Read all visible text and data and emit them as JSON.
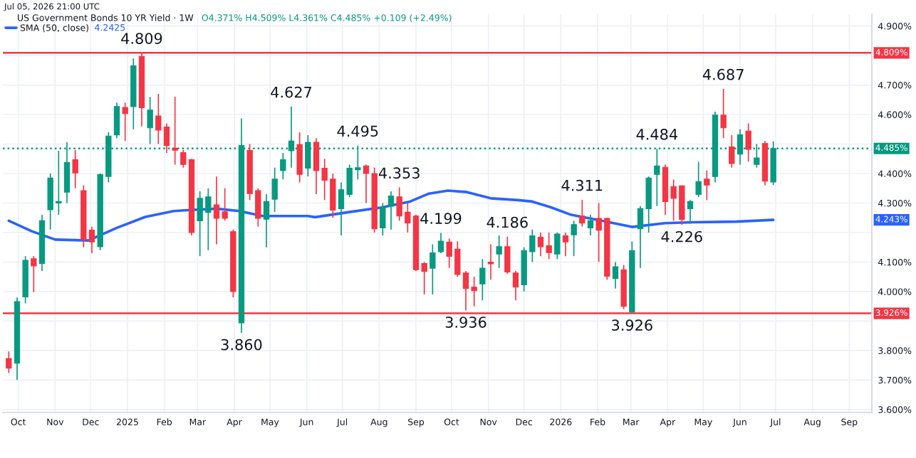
{
  "chart_data": {
    "type": "candlestick",
    "title": "US Government Bonds 10 YR Yield · 1W",
    "x": [
      "2024-09-23",
      "2024-09-30",
      "2024-10-07",
      "2024-10-14",
      "2024-10-21",
      "2024-10-28",
      "2024-11-04",
      "2024-11-11",
      "2024-11-18",
      "2024-11-25",
      "2024-12-02",
      "2024-12-09",
      "2024-12-16",
      "2024-12-23",
      "2024-12-30",
      "2025-01-06",
      "2025-01-13",
      "2025-01-20",
      "2025-01-27",
      "2025-02-03",
      "2025-02-10",
      "2025-02-17",
      "2025-02-24",
      "2025-03-03",
      "2025-03-10",
      "2025-03-17",
      "2025-03-24",
      "2025-03-31",
      "2025-04-07",
      "2025-04-14",
      "2025-04-21",
      "2025-04-28",
      "2025-05-05",
      "2025-05-12",
      "2025-05-19",
      "2025-05-26",
      "2025-06-02",
      "2025-06-09",
      "2025-06-16",
      "2025-06-23",
      "2025-06-30",
      "2025-07-07",
      "2025-07-14",
      "2025-07-21",
      "2025-07-28",
      "2025-08-04",
      "2025-08-11",
      "2025-08-18",
      "2025-08-25",
      "2025-09-01",
      "2025-09-08",
      "2025-09-15",
      "2025-09-22",
      "2025-09-29",
      "2025-10-06",
      "2025-10-13",
      "2025-10-20",
      "2025-10-27",
      "2025-11-03",
      "2025-11-10",
      "2025-11-17",
      "2025-11-24",
      "2025-12-01",
      "2025-12-08",
      "2025-12-15",
      "2025-12-22",
      "2025-12-29",
      "2026-01-05",
      "2026-01-12",
      "2026-01-19",
      "2026-01-26",
      "2026-02-02",
      "2026-02-09",
      "2026-02-16",
      "2026-02-23",
      "2026-03-02",
      "2026-03-09",
      "2026-03-16",
      "2026-03-23",
      "2026-03-30",
      "2026-04-06",
      "2026-04-13",
      "2026-04-20",
      "2026-04-27",
      "2026-05-04",
      "2026-05-11",
      "2026-05-18",
      "2026-05-25",
      "2026-06-01",
      "2026-06-08",
      "2026-06-15",
      "2026-06-22",
      "2026-06-29"
    ],
    "ohlc": [
      [
        3.773,
        3.797,
        3.724,
        3.74
      ],
      [
        3.757,
        3.98,
        3.7,
        3.966
      ],
      [
        3.982,
        4.12,
        3.96,
        4.106
      ],
      [
        4.111,
        4.12,
        3.998,
        4.087
      ],
      [
        4.095,
        4.26,
        4.07,
        4.24
      ],
      [
        4.277,
        4.4,
        4.21,
        4.385
      ],
      [
        4.3,
        4.477,
        4.26,
        4.305
      ],
      [
        4.337,
        4.506,
        4.3,
        4.437
      ],
      [
        4.447,
        4.48,
        4.35,
        4.402
      ],
      [
        4.342,
        4.36,
        4.15,
        4.176
      ],
      [
        4.208,
        4.22,
        4.13,
        4.168
      ],
      [
        4.152,
        4.4,
        4.14,
        4.397
      ],
      [
        4.39,
        4.54,
        4.37,
        4.527
      ],
      [
        4.531,
        4.64,
        4.52,
        4.627
      ],
      [
        4.624,
        4.64,
        4.51,
        4.603
      ],
      [
        4.627,
        4.79,
        4.55,
        4.765
      ],
      [
        4.797,
        4.809,
        4.56,
        4.623
      ],
      [
        4.555,
        4.66,
        4.5,
        4.615
      ],
      [
        4.595,
        4.67,
        4.5,
        4.547
      ],
      [
        4.558,
        4.57,
        4.47,
        4.495
      ],
      [
        4.486,
        4.66,
        4.43,
        4.479
      ],
      [
        4.471,
        4.48,
        4.42,
        4.431
      ],
      [
        4.447,
        4.45,
        4.19,
        4.2
      ],
      [
        4.24,
        4.34,
        4.12,
        4.316
      ],
      [
        4.268,
        4.35,
        4.14,
        4.321
      ],
      [
        4.294,
        4.39,
        4.16,
        4.248
      ],
      [
        4.27,
        4.35,
        4.24,
        4.248
      ],
      [
        4.203,
        4.21,
        3.98,
        4.0
      ],
      [
        3.894,
        4.587,
        3.86,
        4.495
      ],
      [
        4.479,
        4.5,
        4.31,
        4.332
      ],
      [
        4.342,
        4.35,
        4.22,
        4.248
      ],
      [
        4.245,
        4.33,
        4.15,
        4.305
      ],
      [
        4.313,
        4.42,
        4.27,
        4.381
      ],
      [
        4.41,
        4.47,
        4.38,
        4.447
      ],
      [
        4.477,
        4.627,
        4.42,
        4.51
      ],
      [
        4.498,
        4.54,
        4.37,
        4.397
      ],
      [
        4.418,
        4.53,
        4.39,
        4.506
      ],
      [
        4.506,
        4.52,
        4.33,
        4.41
      ],
      [
        4.418,
        4.45,
        4.31,
        4.377
      ],
      [
        4.381,
        4.4,
        4.25,
        4.276
      ],
      [
        4.281,
        4.37,
        4.19,
        4.345
      ],
      [
        4.329,
        4.43,
        4.32,
        4.418
      ],
      [
        4.413,
        4.495,
        4.38,
        4.42
      ],
      [
        4.426,
        4.43,
        4.3,
        4.4
      ],
      [
        4.4,
        4.42,
        4.2,
        4.213
      ],
      [
        4.216,
        4.3,
        4.19,
        4.285
      ],
      [
        4.289,
        4.34,
        4.21,
        4.324
      ],
      [
        4.321,
        4.353,
        4.24,
        4.256
      ],
      [
        4.269,
        4.3,
        4.2,
        4.232
      ],
      [
        4.256,
        4.26,
        4.07,
        4.074
      ],
      [
        4.095,
        4.1,
        3.99,
        4.068
      ],
      [
        4.079,
        4.16,
        3.99,
        4.131
      ],
      [
        4.135,
        4.199,
        4.13,
        4.171
      ],
      [
        4.168,
        4.18,
        4.08,
        4.119
      ],
      [
        4.144,
        4.17,
        4.05,
        4.058
      ],
      [
        4.063,
        4.07,
        3.936,
        4.01
      ],
      [
        4.015,
        4.05,
        3.95,
        4.003
      ],
      [
        4.026,
        4.11,
        3.97,
        4.079
      ],
      [
        4.1,
        4.16,
        4.04,
        4.094
      ],
      [
        4.127,
        4.19,
        4.08,
        4.152
      ],
      [
        4.152,
        4.186,
        4.06,
        4.066
      ],
      [
        4.063,
        4.07,
        3.97,
        4.015
      ],
      [
        4.023,
        4.15,
        4.0,
        4.139
      ],
      [
        4.135,
        4.21,
        4.1,
        4.189
      ],
      [
        4.184,
        4.2,
        4.12,
        4.152
      ],
      [
        4.155,
        4.2,
        4.11,
        4.132
      ],
      [
        4.127,
        4.2,
        4.11,
        4.195
      ],
      [
        4.189,
        4.2,
        4.12,
        4.168
      ],
      [
        4.192,
        4.24,
        4.12,
        4.227
      ],
      [
        4.256,
        4.311,
        4.22,
        4.232
      ],
      [
        4.216,
        4.26,
        4.19,
        4.24
      ],
      [
        4.248,
        4.3,
        4.1,
        4.208
      ],
      [
        4.248,
        4.25,
        4.04,
        4.052
      ],
      [
        4.044,
        4.1,
        4.01,
        4.084
      ],
      [
        4.074,
        4.09,
        3.94,
        3.95
      ],
      [
        3.931,
        4.17,
        3.926,
        4.139
      ],
      [
        4.213,
        4.29,
        4.08,
        4.281
      ],
      [
        4.281,
        4.39,
        4.2,
        4.385
      ],
      [
        4.397,
        4.484,
        4.29,
        4.426
      ],
      [
        4.421,
        4.43,
        4.26,
        4.305
      ],
      [
        4.356,
        4.38,
        4.24,
        4.316
      ],
      [
        4.358,
        4.36,
        4.226,
        4.244
      ],
      [
        4.281,
        4.31,
        4.23,
        4.305
      ],
      [
        4.329,
        4.44,
        4.32,
        4.373
      ],
      [
        4.381,
        4.41,
        4.31,
        4.361
      ],
      [
        4.39,
        4.61,
        4.37,
        4.598
      ],
      [
        4.598,
        4.687,
        4.52,
        4.555
      ],
      [
        4.49,
        4.53,
        4.42,
        4.434
      ],
      [
        4.466,
        4.55,
        4.43,
        4.531
      ],
      [
        4.544,
        4.57,
        4.44,
        4.482
      ],
      [
        4.431,
        4.5,
        4.42,
        4.453
      ],
      [
        4.502,
        4.51,
        4.36,
        4.374
      ],
      [
        4.371,
        4.509,
        4.361,
        4.485
      ]
    ],
    "colors": [
      "#f23645",
      "#089981",
      "#089981",
      "#f23645",
      "#089981",
      "#089981",
      "#089981",
      "#089981",
      "#f23645",
      "#f23645",
      "#f23645",
      "#089981",
      "#089981",
      "#089981",
      "#f23645",
      "#089981",
      "#f23645",
      "#089981",
      "#f23645",
      "#f23645",
      "#f23645",
      "#f23645",
      "#f23645",
      "#089981",
      "#089981",
      "#f23645",
      "#f23645",
      "#f23645",
      "#089981",
      "#f23645",
      "#f23645",
      "#089981",
      "#089981",
      "#089981",
      "#089981",
      "#f23645",
      "#089981",
      "#f23645",
      "#f23645",
      "#f23645",
      "#089981",
      "#089981",
      "#089981",
      "#f23645",
      "#f23645",
      "#089981",
      "#089981",
      "#f23645",
      "#f23645",
      "#f23645",
      "#f23645",
      "#089981",
      "#089981",
      "#f23645",
      "#f23645",
      "#f23645",
      "#f23645",
      "#089981",
      "#f23645",
      "#089981",
      "#f23645",
      "#f23645",
      "#089981",
      "#089981",
      "#f23645",
      "#f23645",
      "#089981",
      "#f23645",
      "#089981",
      "#f23645",
      "#089981",
      "#f23645",
      "#f23645",
      "#089981",
      "#f23645",
      "#089981",
      "#089981",
      "#089981",
      "#089981",
      "#f23645",
      "#f23645",
      "#f23645",
      "#089981",
      "#089981",
      "#f23645",
      "#089981",
      "#f23645",
      "#f23645",
      "#089981",
      "#f23645",
      "#089981",
      "#f23645",
      "#089981"
    ],
    "series": [
      {
        "type": "line",
        "name": "SMA (50, close)",
        "color": "#2962ff",
        "x": [
          "2024-09-23",
          "2024-10-12",
          "2024-11-01",
          "2024-11-29",
          "2024-12-23",
          "2025-01-16",
          "2025-02-09",
          "2025-02-21",
          "2025-03-17",
          "2025-04-05",
          "2025-04-25",
          "2025-05-15",
          "2025-06-02",
          "2025-06-08",
          "2025-07-06",
          "2025-08-03",
          "2025-08-27",
          "2025-09-12",
          "2025-09-28",
          "2025-10-14",
          "2025-11-03",
          "2025-11-26",
          "2025-12-08",
          "2025-12-24",
          "2026-01-09",
          "2026-01-29",
          "2026-03-02",
          "2026-03-30",
          "2026-04-23",
          "2026-05-29",
          "2026-06-29"
        ],
        "values": [
          4.24,
          4.205,
          4.176,
          4.173,
          4.216,
          4.253,
          4.273,
          4.276,
          4.281,
          4.273,
          4.256,
          4.256,
          4.256,
          4.252,
          4.269,
          4.285,
          4.305,
          4.332,
          4.342,
          4.337,
          4.316,
          4.31,
          4.305,
          4.285,
          4.261,
          4.245,
          4.219,
          4.232,
          4.235,
          4.237,
          4.243
        ]
      }
    ],
    "xlim": [
      "2024-09-18",
      "2026-09-20"
    ],
    "xticks": [
      {
        "value": "2024-10-01",
        "label": "Oct"
      },
      {
        "value": "2024-11-01",
        "label": "Nov"
      },
      {
        "value": "2024-12-01",
        "label": "Dec"
      },
      {
        "value": "2025-01-01",
        "label": "2025"
      },
      {
        "value": "2025-02-01",
        "label": "Feb"
      },
      {
        "value": "2025-03-01",
        "label": "Mar"
      },
      {
        "value": "2025-04-01",
        "label": "Apr"
      },
      {
        "value": "2025-05-01",
        "label": "May"
      },
      {
        "value": "2025-06-01",
        "label": "Jun"
      },
      {
        "value": "2025-07-01",
        "label": "Jul"
      },
      {
        "value": "2025-08-01",
        "label": "Aug"
      },
      {
        "value": "2025-09-01",
        "label": "Sep"
      },
      {
        "value": "2025-10-01",
        "label": "Oct"
      },
      {
        "value": "2025-11-01",
        "label": "Nov"
      },
      {
        "value": "2025-12-01",
        "label": "Dec"
      },
      {
        "value": "2026-01-01",
        "label": "2026"
      },
      {
        "value": "2026-02-01",
        "label": "Feb"
      },
      {
        "value": "2026-03-01",
        "label": "Mar"
      },
      {
        "value": "2026-04-01",
        "label": "Apr"
      },
      {
        "value": "2026-05-01",
        "label": "May"
      },
      {
        "value": "2026-06-01",
        "label": "Jun"
      },
      {
        "value": "2026-07-01",
        "label": "Jul"
      },
      {
        "value": "2026-08-01",
        "label": "Aug"
      },
      {
        "value": "2026-09-01",
        "label": "Sep"
      }
    ],
    "ylim": [
      3.59,
      4.94
    ],
    "yticks": [
      {
        "value": 3.6,
        "label": "3.600%"
      },
      {
        "value": 3.7,
        "label": "3.700%"
      },
      {
        "value": 3.8,
        "label": "3.800%"
      },
      {
        "value": 3.9,
        "label": null
      },
      {
        "value": 4.0,
        "label": "4.000%"
      },
      {
        "value": 4.1,
        "label": "4.100%"
      },
      {
        "value": 4.2,
        "label": null
      },
      {
        "value": 4.3,
        "label": "4.300%"
      },
      {
        "value": 4.4,
        "label": "4.400%"
      },
      {
        "value": 4.5,
        "label": null
      },
      {
        "value": 4.6,
        "label": "4.600%"
      },
      {
        "value": 4.7,
        "label": "4.700%"
      },
      {
        "value": 4.8,
        "label": null
      },
      {
        "value": 4.9,
        "label": "4.900%"
      }
    ],
    "ref_lines": [
      {
        "axis": "y",
        "value": 4.809,
        "label": "4.809%",
        "color": "#f23645"
      },
      {
        "axis": "y",
        "value": 3.926,
        "label": "3.926%",
        "color": "#f23645"
      },
      {
        "axis": "y",
        "value": 4.485,
        "label": "4.485%",
        "color": "#089981",
        "line_style": "dotted"
      }
    ],
    "annotations": [
      "Jul 05, 2026 21:00 UTC",
      "O4.371% H4.509% L4.361% C4.485% +0.109 (+2.49%)",
      "4.2425",
      {
        "text": "4.243%",
        "y": 4.243
      },
      {
        "text": "4.809",
        "x": "2025-01-13",
        "y": 4.809
      },
      {
        "text": "3.860",
        "x": "2025-04-07",
        "y": 3.86
      },
      {
        "text": "4.627",
        "x": "2025-05-19",
        "y": 4.627
      },
      {
        "text": "4.495",
        "x": "2025-07-14",
        "y": 4.495
      },
      {
        "text": "4.353",
        "x": "2025-08-18",
        "y": 4.353
      },
      {
        "text": "4.199",
        "x": "2025-09-22",
        "y": 4.199
      },
      {
        "text": "3.936",
        "x": "2025-10-13",
        "y": 3.936
      },
      {
        "text": "4.186",
        "x": "2025-11-17",
        "y": 4.186
      },
      {
        "text": "4.311",
        "x": "2026-01-19",
        "y": 4.311
      },
      {
        "text": "3.926",
        "x": "2026-03-02",
        "y": 3.926
      },
      {
        "text": "4.484",
        "x": "2026-03-23",
        "y": 4.484
      },
      {
        "text": "4.226",
        "x": "2026-04-13",
        "y": 4.226
      },
      {
        "text": "4.687",
        "x": "2026-05-18",
        "y": 4.687
      }
    ],
    "grid": true,
    "legend": "top left"
  }
}
